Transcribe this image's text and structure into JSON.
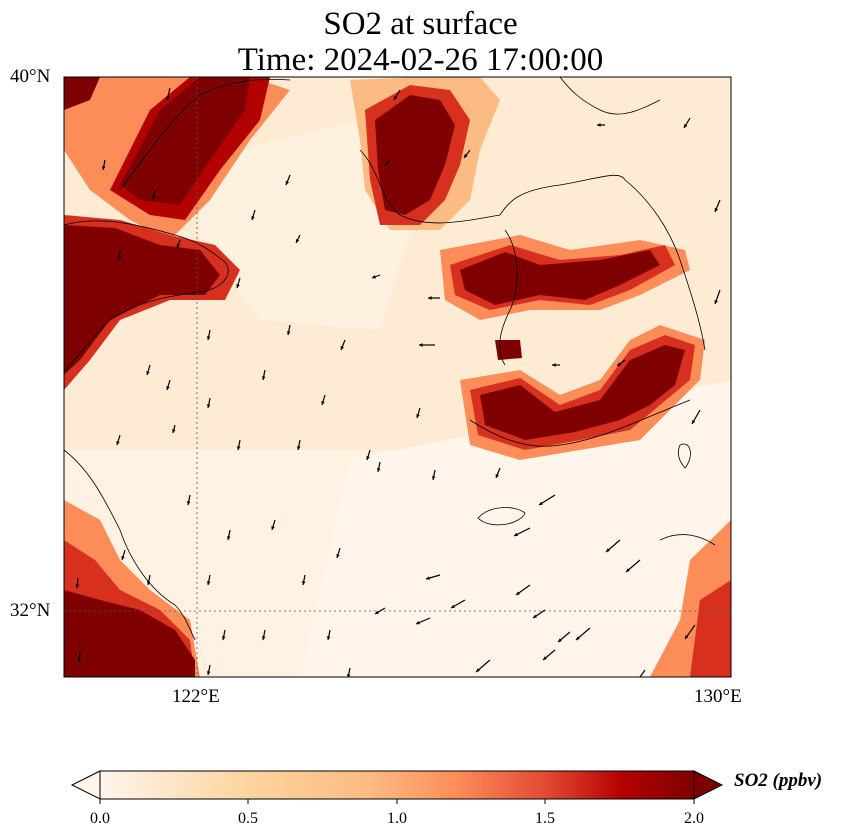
{
  "title": {
    "line1": "SO2 at surface",
    "line2": "Time: 2024-02-26 17:00:00"
  },
  "map": {
    "lat_labels": [
      "40°N",
      "32°N"
    ],
    "lon_labels": [
      "122°E",
      "130°E"
    ],
    "lat_range": [
      31,
      40
    ],
    "lon_range": [
      120,
      130
    ],
    "gridlines": "dotted at 32°N and 122°E",
    "field": "SO2 concentration (ppbv) with wind vectors",
    "colormap": "OrRd",
    "colors": {
      "low": "#fff5eb",
      "mid": "#fdbb84",
      "high": "#d7301f",
      "max": "#7f0000"
    },
    "features": [
      "coastlines",
      "wind-arrows"
    ]
  },
  "colorbar": {
    "label": "SO2 (ppbv)",
    "ticks": [
      "0.0",
      "0.5",
      "1.0",
      "1.5",
      "2.0"
    ],
    "range": [
      0,
      2
    ],
    "extend": "both"
  }
}
